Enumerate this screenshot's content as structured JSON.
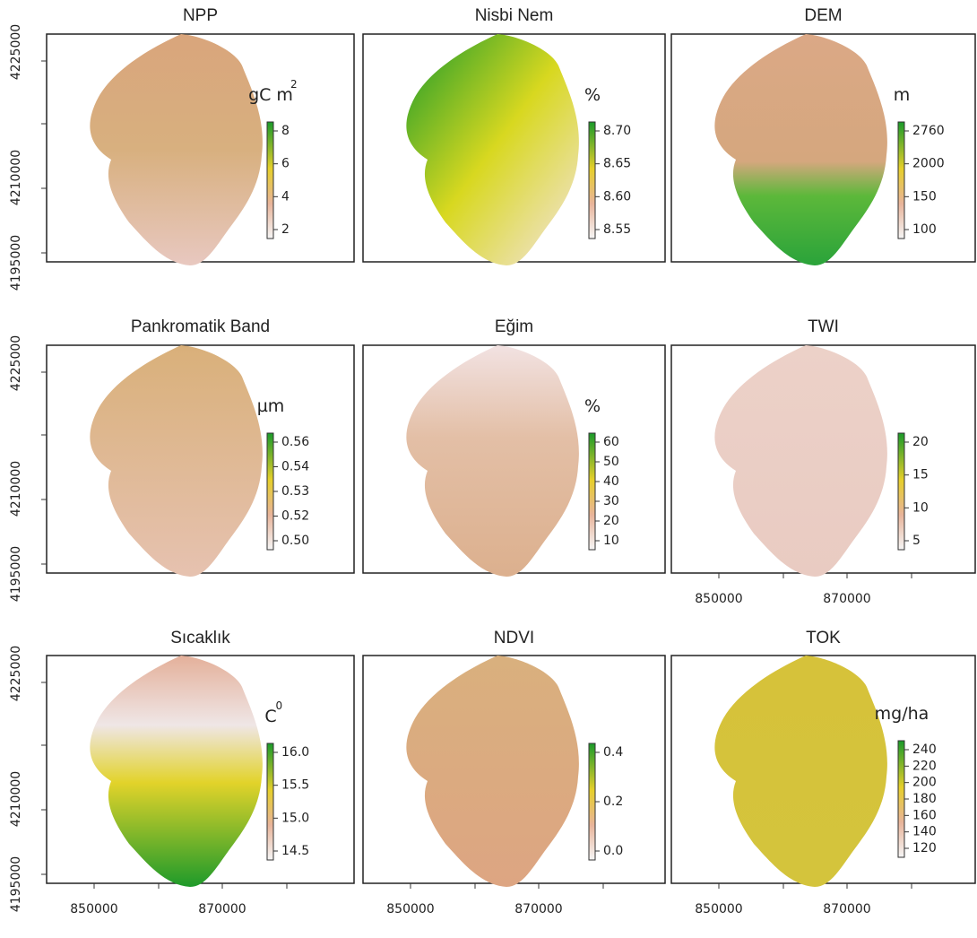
{
  "panels": [
    {
      "title": "NPP",
      "unit": "gC m",
      "unit_sup": "2",
      "legend_ticks": [
        "8",
        "6",
        "4",
        "2"
      ]
    },
    {
      "title": "Nisbi Nem",
      "unit": "%",
      "legend_ticks": [
        "8.70",
        "8.65",
        "8.60",
        "8.55"
      ]
    },
    {
      "title": "DEM",
      "unit": "m",
      "legend_ticks": [
        "2760",
        "2000",
        "150",
        "100"
      ]
    },
    {
      "title": "Pankromatik Band",
      "unit": "µm",
      "legend_ticks": [
        "0.56",
        "0.54",
        "0.53",
        "0.52",
        "0.50"
      ]
    },
    {
      "title": "Eğim",
      "unit": "%",
      "legend_ticks": [
        "60",
        "50",
        "40",
        "30",
        "20",
        "10"
      ]
    },
    {
      "title": "TWI",
      "unit": "",
      "legend_ticks": [
        "20",
        "15",
        "10",
        "5"
      ]
    },
    {
      "title": "Sıcaklık",
      "unit": "C",
      "unit_sup": "0",
      "legend_ticks": [
        "16.0",
        "15.5",
        "15.0",
        "14.5"
      ]
    },
    {
      "title": "NDVI",
      "unit": "",
      "legend_ticks": [
        "0.4",
        "0.2",
        "0.0"
      ]
    },
    {
      "title": "TOK",
      "unit": "mg/ha",
      "legend_ticks": [
        "240",
        "220",
        "200",
        "180",
        "160",
        "140",
        "120"
      ]
    }
  ],
  "y_axis_labels": [
    "4225000",
    "4210000",
    "4195000"
  ],
  "x_axis_labels": [
    "850000",
    "870000"
  ]
}
